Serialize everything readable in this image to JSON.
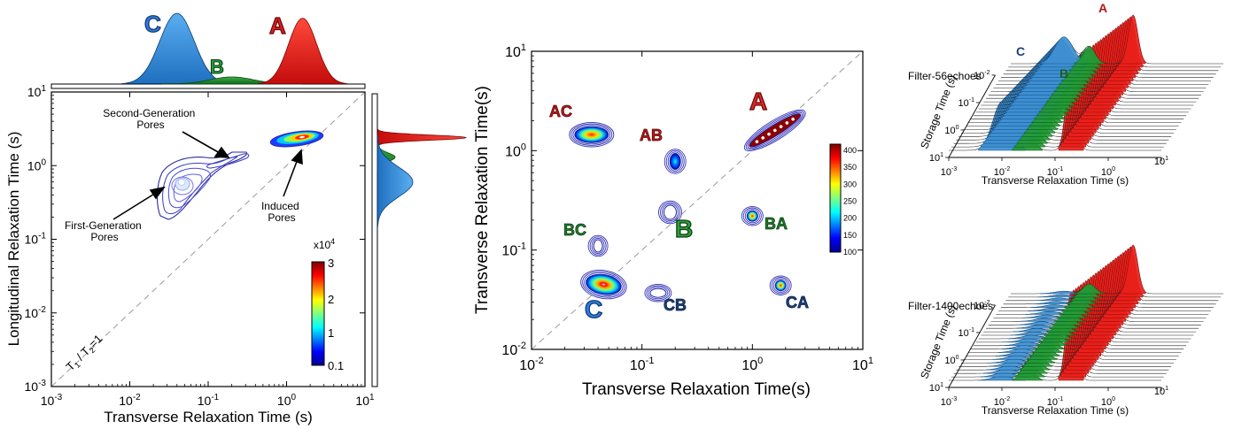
{
  "colors": {
    "peak_A": "#ee1b14",
    "peak_B": "#1e8a2a",
    "peak_C": "#2e8fe0",
    "label_A": "#b01818",
    "label_B": "#1f5e1f",
    "label_C": "#1c3f7a",
    "axis": "#000000",
    "diagonal": "#9a9a9a",
    "contour": "#2a2aa8"
  },
  "chart_data": [
    {
      "id": "t1t2",
      "type": "heatmap",
      "xlabel": "Transverse Relaxation Time (s)",
      "ylabel": "Longitudinal Relaxation Time (s)",
      "x_scale": "log",
      "y_scale": "log",
      "xlim": [
        0.001,
        10
      ],
      "ylim": [
        0.001,
        10
      ],
      "x_ticks": [
        {
          "base": "10",
          "exp": "-3"
        },
        {
          "base": "10",
          "exp": "-2"
        },
        {
          "base": "10",
          "exp": "-1"
        },
        {
          "base": "10",
          "exp": "0"
        },
        {
          "base": "10",
          "exp": "1"
        }
      ],
      "y_ticks": [
        {
          "base": "10",
          "exp": "-3"
        },
        {
          "base": "10",
          "exp": "-2"
        },
        {
          "base": "10",
          "exp": "-1"
        },
        {
          "base": "10",
          "exp": "0"
        },
        {
          "base": "10",
          "exp": "1"
        }
      ],
      "diagonal_label": {
        "t1": "T",
        "s1": "1",
        "sep": " / T",
        "s2": "2",
        "eq": "=1"
      },
      "clusters": [
        {
          "name": "first-generation",
          "t2": 0.04,
          "t1": 0.6,
          "intensity": 0.25
        },
        {
          "name": "second-generation",
          "t2": 0.2,
          "t1": 1.3,
          "intensity": 0.15
        },
        {
          "name": "induced",
          "t2": 1.6,
          "t1": 2.5,
          "intensity": 3.0
        }
      ],
      "annotations": [
        {
          "lines": [
            "Second-Generation",
            "Pores"
          ]
        },
        {
          "lines": [
            "First-Generation",
            "Pores"
          ]
        },
        {
          "lines": [
            "Induced",
            "Pores"
          ]
        }
      ],
      "colorbar": {
        "exponent_label": "x10",
        "exponent": "4",
        "ticks": [
          "3",
          "2",
          "1",
          "0.1"
        ]
      },
      "top_projection": {
        "peaks": [
          {
            "label": "C",
            "x": 0.04,
            "height": 1.0
          },
          {
            "label": "B",
            "x": 0.2,
            "height": 0.1
          },
          {
            "label": "A",
            "x": 1.6,
            "height": 0.93
          }
        ]
      },
      "right_projection": {
        "peaks": [
          {
            "label": "A",
            "y": 2.4,
            "height": 1.0
          },
          {
            "label": "B",
            "y": 1.3,
            "height": 0.05
          },
          {
            "label": "C",
            "y": 0.6,
            "height": 0.4
          }
        ]
      }
    },
    {
      "id": "t2t2",
      "type": "heatmap",
      "xlabel": "Transverse Relaxation Time(s)",
      "ylabel": "Transverse Relaxation Time(s)",
      "x_scale": "log",
      "y_scale": "log",
      "xlim": [
        0.01,
        10
      ],
      "ylim": [
        0.01,
        10
      ],
      "x_ticks": [
        {
          "base": "10",
          "exp": "-2"
        },
        {
          "base": "10",
          "exp": "-1"
        },
        {
          "base": "10",
          "exp": "0"
        },
        {
          "base": "10",
          "exp": "1"
        }
      ],
      "y_ticks": [
        {
          "base": "10",
          "exp": "-2"
        },
        {
          "base": "10",
          "exp": "-1"
        },
        {
          "base": "10",
          "exp": "0"
        },
        {
          "base": "10",
          "exp": "1"
        }
      ],
      "peaks": [
        {
          "label": "A",
          "x": 1.6,
          "y": 1.6,
          "intensity": 400
        },
        {
          "label": "B",
          "x": 0.18,
          "y": 0.24,
          "intensity": 110
        },
        {
          "label": "C",
          "x": 0.045,
          "y": 0.045,
          "intensity": 300
        },
        {
          "label": "AC",
          "x": 0.035,
          "y": 1.45,
          "intensity": 280
        },
        {
          "label": "AB",
          "x": 0.2,
          "y": 0.78,
          "intensity": 160
        },
        {
          "label": "BC",
          "x": 0.04,
          "y": 0.11,
          "intensity": 110
        },
        {
          "label": "BA",
          "x": 1.0,
          "y": 0.22,
          "intensity": 380
        },
        {
          "label": "CB",
          "x": 0.14,
          "y": 0.037,
          "intensity": 110
        },
        {
          "label": "CA",
          "x": 1.8,
          "y": 0.044,
          "intensity": 350
        }
      ],
      "colorbar": {
        "ticks": [
          "400",
          "350",
          "300",
          "250",
          "200",
          "150",
          "100"
        ]
      }
    },
    {
      "id": "waterfall-56",
      "type": "area",
      "title": "Filter-56echoes",
      "xlabel": "Transverse Relaxation Time (s)",
      "ylabel": "Storage Time (s)",
      "x_ticks": [
        {
          "base": "10",
          "exp": "-3"
        },
        {
          "base": "10",
          "exp": "-2"
        },
        {
          "base": "10",
          "exp": "-1"
        },
        {
          "base": "10",
          "exp": "0"
        },
        {
          "base": "10",
          "exp": "1"
        }
      ],
      "y_ticks": [
        {
          "base": "10",
          "exp": "-2"
        },
        {
          "base": "10",
          "exp": "-1"
        },
        {
          "base": "10",
          "exp": "0"
        },
        {
          "base": "10",
          "exp": "1"
        }
      ],
      "peaks": [
        {
          "label": "C",
          "x": 0.01,
          "height": 0.55
        },
        {
          "label": "B",
          "x": 0.03,
          "height": 0.35
        },
        {
          "label": "A",
          "x": 0.2,
          "height": 1.0
        }
      ]
    },
    {
      "id": "waterfall-1400",
      "type": "area",
      "title": "Filter-1400echoes",
      "xlabel": "Transverse Relaxation Time (s)",
      "ylabel": "Storage Time (s)",
      "x_ticks": [
        {
          "base": "10",
          "exp": "-3"
        },
        {
          "base": "10",
          "exp": "-2"
        },
        {
          "base": "10",
          "exp": "-1"
        },
        {
          "base": "10",
          "exp": "0"
        },
        {
          "base": "10",
          "exp": "1"
        }
      ],
      "y_ticks": [
        {
          "base": "10",
          "exp": "-2"
        },
        {
          "base": "10",
          "exp": "-1"
        },
        {
          "base": "10",
          "exp": "0"
        },
        {
          "base": "10",
          "exp": "1"
        }
      ],
      "peaks": [
        {
          "label": "C",
          "x": 0.01,
          "height": 0.05
        },
        {
          "label": "B",
          "x": 0.03,
          "height": 0.2
        },
        {
          "label": "A",
          "x": 0.2,
          "height": 1.0
        }
      ]
    }
  ]
}
